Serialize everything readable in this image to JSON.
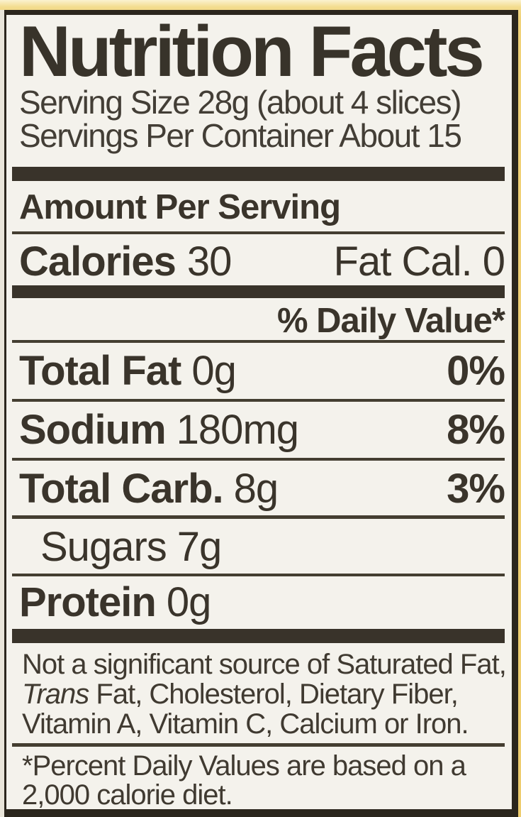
{
  "label": {
    "title": "Nutrition Facts",
    "serving_size": "Serving Size 28g (about 4 slices)",
    "servings_per_container": "Servings Per Container About 15",
    "amount_per_serving": "Amount Per Serving",
    "calories": {
      "label": "Calories",
      "value": "30"
    },
    "fat_calories": {
      "label": "Fat Cal.",
      "value": "0"
    },
    "daily_value_header": "% Daily Value*",
    "nutrients": [
      {
        "name": "Total Fat",
        "amount": "0g",
        "dv": "0%"
      },
      {
        "name": "Sodium",
        "amount": "180mg",
        "dv": "8%"
      },
      {
        "name": "Total Carb.",
        "amount": "8g",
        "dv": "3%"
      },
      {
        "name": "Sugars",
        "amount": "7g",
        "dv": ""
      },
      {
        "name": "Protein",
        "amount": "0g",
        "dv": ""
      }
    ],
    "footnote": {
      "line1": "Not a significant source of Saturated Fat,",
      "line2_italic": "Trans",
      "line2_rest": " Fat, Cholesterol, Dietary Fiber,",
      "line3": "Vitamin A, Vitamin C, Calcium or Iron."
    },
    "dv_note": {
      "line1": "*Percent Daily Values are based on a",
      "line2": "2,000 calorie diet."
    }
  },
  "colors": {
    "package_yellow": "#f0d279",
    "label_background": "#f4f2ec",
    "ink": "#3a342b",
    "border": "#2b261d"
  }
}
